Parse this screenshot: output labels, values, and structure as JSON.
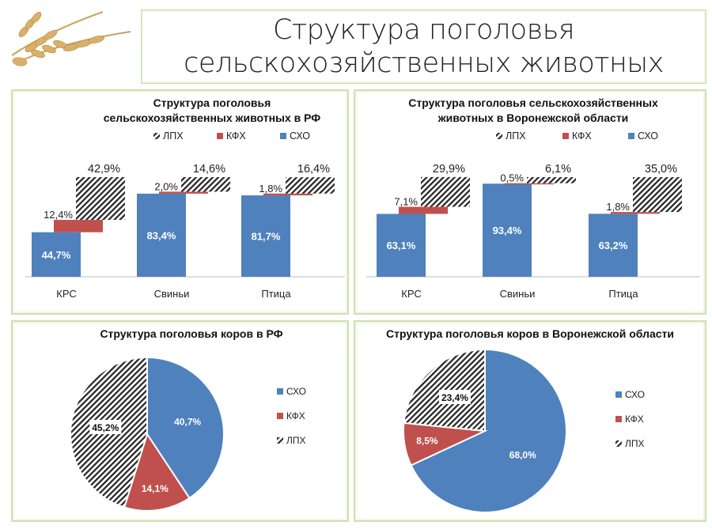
{
  "header": {
    "title_line1": "Структура поголовья",
    "title_line2": "сельскохозяйственных животных"
  },
  "colors": {
    "sxo": "#4f81bd",
    "kfx": "#c0504d",
    "lpx": "hatch-black-white"
  },
  "chart_data": [
    {
      "type": "bar",
      "stacked": true,
      "title": [
        "Структура поголовья",
        "сельскохозяйственных животных  в РФ"
      ],
      "legend": [
        "ЛПХ",
        "КФХ",
        "СХО"
      ],
      "legend_position": "top",
      "categories": [
        "КРС",
        "Свиньи",
        "Птица"
      ],
      "series": [
        {
          "name": "СХО",
          "values": [
            44.7,
            83.4,
            81.7
          ],
          "labels": [
            "44,7%",
            "83,4%",
            "81,7%"
          ]
        },
        {
          "name": "КФХ",
          "values": [
            12.4,
            2.0,
            1.8
          ],
          "labels": [
            "12,4%",
            "2,0%",
            "1,8%"
          ]
        },
        {
          "name": "ЛПХ",
          "values": [
            42.9,
            14.6,
            16.4
          ],
          "labels": [
            "42,9%",
            "14,6%",
            "16,4%"
          ]
        }
      ],
      "grid": false
    },
    {
      "type": "bar",
      "stacked": true,
      "title": [
        "Структура поголовья сельскохозяйственных",
        "животных в Воронежской области"
      ],
      "legend": [
        "ЛПХ",
        "КФХ",
        "СХО"
      ],
      "legend_position": "top",
      "categories": [
        "КРС",
        "Свиньи",
        "Птица"
      ],
      "series": [
        {
          "name": "СХО",
          "values": [
            63.1,
            93.4,
            63.2
          ],
          "labels": [
            "63,1%",
            "93,4%",
            "63,2%"
          ]
        },
        {
          "name": "КФХ",
          "values": [
            7.1,
            0.5,
            1.8
          ],
          "labels": [
            "7,1%",
            "0,5%",
            "1,8%"
          ]
        },
        {
          "name": "ЛПХ",
          "values": [
            29.9,
            6.1,
            35.0
          ],
          "labels": [
            "29,9%",
            "6,1%",
            "35,0%"
          ]
        }
      ],
      "grid": false
    },
    {
      "type": "pie",
      "title": [
        "Структура поголовья коров в РФ"
      ],
      "legend": [
        "СХО",
        "КФХ",
        "ЛПХ"
      ],
      "legend_position": "right",
      "slices": [
        {
          "name": "СХО",
          "value": 40.7,
          "label": "40,7%"
        },
        {
          "name": "КФХ",
          "value": 14.1,
          "label": "14,1%"
        },
        {
          "name": "ЛПХ",
          "value": 45.2,
          "label": "45,2%"
        }
      ]
    },
    {
      "type": "pie",
      "title": [
        "Структура поголовья коров в Воронежской области"
      ],
      "legend": [
        "СХО",
        "КФХ",
        "ЛПХ"
      ],
      "legend_position": "right",
      "slices": [
        {
          "name": "СХО",
          "value": 68.0,
          "label": "68,0%"
        },
        {
          "name": "КФХ",
          "value": 8.5,
          "label": "8,5%"
        },
        {
          "name": "ЛПХ",
          "value": 23.4,
          "label": "23,4%"
        }
      ]
    }
  ]
}
